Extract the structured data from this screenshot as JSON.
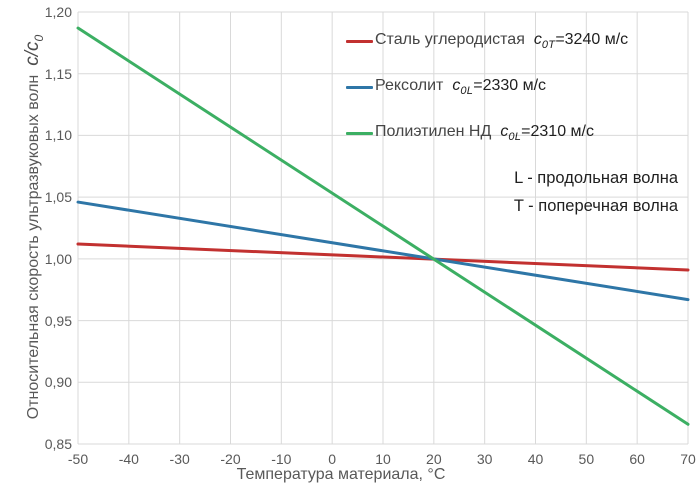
{
  "colors": {
    "background": "#ffffff",
    "grid": "#d9d9d9",
    "axis_text": "#595959",
    "legend_name_text": "#454545",
    "formula_text": "#1f1f1f"
  },
  "chart_data": {
    "type": "line",
    "title": "",
    "xlabel": "Температура материала, °C",
    "ylabel": "Относительная скорость ультразвуковых волн",
    "ylabel_math_main": "c/c",
    "ylabel_math_sub": "0",
    "xlim": [
      -50,
      70
    ],
    "ylim": [
      0.85,
      1.2
    ],
    "x_ticks": [
      -50,
      -40,
      -30,
      -20,
      -10,
      0,
      10,
      20,
      30,
      40,
      50,
      60,
      70
    ],
    "y_ticks": [
      1.2,
      1.15,
      1.1,
      1.05,
      1.0,
      0.95,
      0.9,
      0.85
    ],
    "y_tick_labels": [
      "1,20",
      "1,15",
      "1,10",
      "1,05",
      "1,00",
      "0,95",
      "0,90",
      "0,85"
    ],
    "grid": true,
    "legend_position": "top-right",
    "line_width": 3,
    "series": [
      {
        "name": "Сталь углеродистая",
        "symbol": "c",
        "symbol_sub": "0T",
        "value": "=3240 м/с",
        "color": "#c23130",
        "x": [
          -50,
          70
        ],
        "y": [
          1.012,
          0.991
        ]
      },
      {
        "name": "Рексолит",
        "symbol": "c",
        "symbol_sub": "0L",
        "value": "=2330 м/с",
        "color": "#2e76a7",
        "x": [
          -50,
          70
        ],
        "y": [
          1.046,
          0.967
        ]
      },
      {
        "name": "Полиэтилен НД",
        "symbol": "c",
        "symbol_sub": "0L",
        "value": "=2310 м/с",
        "color": "#3caf63",
        "x": [
          -50,
          70
        ],
        "y": [
          1.187,
          0.866
        ]
      }
    ],
    "annotations": [
      "L - продольная волна",
      "T - поперечная волна"
    ]
  }
}
